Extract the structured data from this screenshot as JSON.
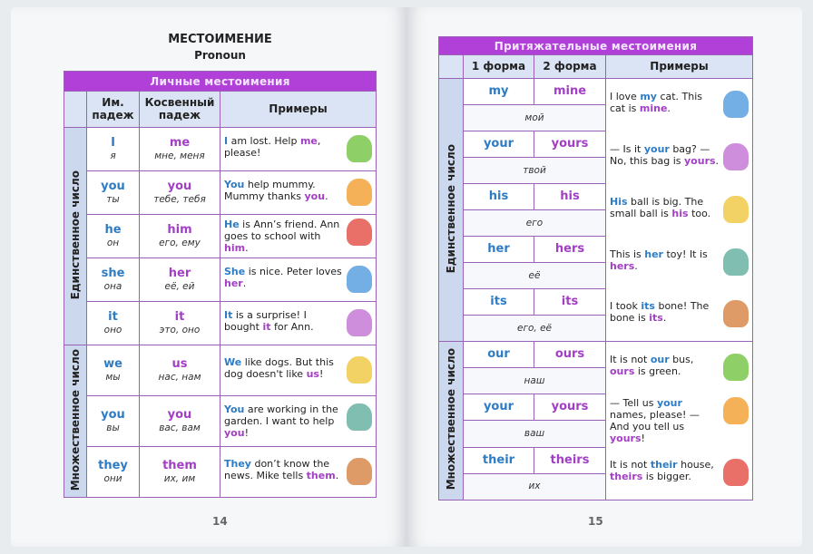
{
  "left_page": {
    "title": "МЕСТОИМЕНИЕ",
    "subtitle": "Pronoun",
    "table_title": "Личные местоимения",
    "headers": [
      "Им. падеж",
      "Косвенный падеж",
      "Примеры"
    ],
    "groups": [
      {
        "label": "Единственное число",
        "rows": [
          {
            "nom": "I",
            "nom_ru": "я",
            "obj": "me",
            "obj_ru": "мне, меня",
            "example": [
              [
                "I",
                "b"
              ],
              [
                " am lost. Help ",
                ""
              ],
              [
                "me",
                "p"
              ],
              [
                ", please!",
                ""
              ]
            ]
          },
          {
            "nom": "you",
            "nom_ru": "ты",
            "obj": "you",
            "obj_ru": "тебе, тебя",
            "example": [
              [
                "You",
                "b"
              ],
              [
                " help mummy. Mummy thanks ",
                ""
              ],
              [
                "you",
                "p"
              ],
              [
                ".",
                ""
              ]
            ]
          },
          {
            "nom": "he",
            "nom_ru": "он",
            "obj": "him",
            "obj_ru": "его, ему",
            "example": [
              [
                "He",
                "b"
              ],
              [
                " is Ann’s friend. Ann goes to school with ",
                ""
              ],
              [
                "him",
                "p"
              ],
              [
                ".",
                ""
              ]
            ]
          },
          {
            "nom": "she",
            "nom_ru": "она",
            "obj": "her",
            "obj_ru": "её, ей",
            "example": [
              [
                "She",
                "b"
              ],
              [
                " is nice. Peter loves ",
                ""
              ],
              [
                "her",
                "p"
              ],
              [
                ".",
                ""
              ]
            ]
          },
          {
            "nom": "it",
            "nom_ru": "оно",
            "obj": "it",
            "obj_ru": "это, оно",
            "example": [
              [
                "It",
                "b"
              ],
              [
                " is a surprise! I bought ",
                ""
              ],
              [
                "it",
                "p"
              ],
              [
                " for Ann.",
                ""
              ]
            ]
          }
        ]
      },
      {
        "label": "Множественное число",
        "rows": [
          {
            "nom": "we",
            "nom_ru": "мы",
            "obj": "us",
            "obj_ru": "нас, нам",
            "example": [
              [
                "We",
                "b"
              ],
              [
                " like dogs. But this dog doesn't like ",
                ""
              ],
              [
                "us",
                "p"
              ],
              [
                "!",
                ""
              ]
            ]
          },
          {
            "nom": "you",
            "nom_ru": "вы",
            "obj": "you",
            "obj_ru": "вас, вам",
            "example": [
              [
                "You",
                "b"
              ],
              [
                " are working in the garden. I want to help ",
                ""
              ],
              [
                "you",
                "p"
              ],
              [
                "!",
                ""
              ]
            ]
          },
          {
            "nom": "they",
            "nom_ru": "они",
            "obj": "them",
            "obj_ru": "их, им",
            "example": [
              [
                "They",
                "b"
              ],
              [
                " don’t know the news. Mike tells ",
                ""
              ],
              [
                "them",
                "p"
              ],
              [
                ".",
                ""
              ]
            ]
          }
        ]
      }
    ],
    "page_number": "14"
  },
  "right_page": {
    "table_title": "Притяжательные местоимения",
    "headers": [
      "1 форма",
      "2 форма",
      "Примеры"
    ],
    "groups": [
      {
        "label": "Единственное число",
        "rows": [
          {
            "f1": "my",
            "f2": "mine",
            "ru": "мой",
            "example": [
              [
                "I love ",
                ""
              ],
              [
                "my",
                "b"
              ],
              [
                " cat. This cat is ",
                ""
              ],
              [
                "mine",
                "p"
              ],
              [
                ".",
                ""
              ]
            ]
          },
          {
            "f1": "your",
            "f2": "yours",
            "ru": "твой",
            "example": [
              [
                "— Is it ",
                ""
              ],
              [
                "your",
                "b"
              ],
              [
                " bag? — No, this bag is ",
                ""
              ],
              [
                "yours",
                "p"
              ],
              [
                ".",
                ""
              ]
            ]
          },
          {
            "f1": "his",
            "f2": "his",
            "ru": "его",
            "example": [
              [
                "His",
                "b"
              ],
              [
                " ball is big. The small ball is ",
                ""
              ],
              [
                "his",
                "p"
              ],
              [
                " too.",
                ""
              ]
            ]
          },
          {
            "f1": "her",
            "f2": "hers",
            "ru": "её",
            "example": [
              [
                "This is ",
                ""
              ],
              [
                "her",
                "b"
              ],
              [
                " toy! It is ",
                ""
              ],
              [
                "hers",
                "p"
              ],
              [
                ".",
                ""
              ]
            ]
          },
          {
            "f1": "its",
            "f2": "its",
            "ru": "его, её",
            "example": [
              [
                "I took ",
                ""
              ],
              [
                "its",
                "b"
              ],
              [
                " bone! The bone is ",
                ""
              ],
              [
                "its",
                "p"
              ],
              [
                ".",
                ""
              ]
            ]
          }
        ]
      },
      {
        "label": "Множественное число",
        "rows": [
          {
            "f1": "our",
            "f2": "ours",
            "ru": "наш",
            "example": [
              [
                "It is not ",
                ""
              ],
              [
                "our",
                "b"
              ],
              [
                " bus, ",
                ""
              ],
              [
                "ours",
                "p"
              ],
              [
                " is green.",
                ""
              ]
            ]
          },
          {
            "f1": "your",
            "f2": "yours",
            "ru": "ваш",
            "example": [
              [
                "— Tell us ",
                ""
              ],
              [
                "your",
                "b"
              ],
              [
                " names, please! — And you tell us ",
                ""
              ],
              [
                "yours",
                "p"
              ],
              [
                "!",
                ""
              ]
            ]
          },
          {
            "f1": "their",
            "f2": "theirs",
            "ru": "их",
            "example": [
              [
                "It is not ",
                ""
              ],
              [
                "their",
                "b"
              ],
              [
                " house, ",
                ""
              ],
              [
                "theirs",
                "p"
              ],
              [
                " is bigger.",
                ""
              ]
            ]
          }
        ]
      }
    ],
    "page_number": "15"
  },
  "colors": {
    "band": "#b040d8",
    "blue_word": "#2e7cc4",
    "purple_word": "#a23fc4",
    "header_bg": "#dbe4f4"
  }
}
